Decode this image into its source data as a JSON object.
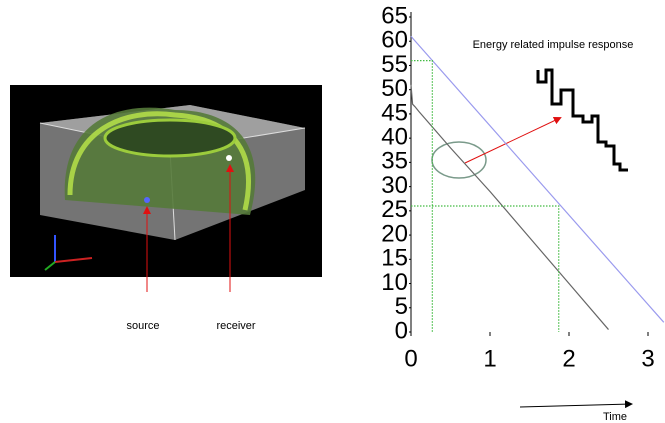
{
  "scene": {
    "labels": [
      "source",
      "receiver"
    ]
  },
  "chart_data": {
    "type": "line",
    "annotations": [
      "Energy related impulse response",
      "Time"
    ],
    "xlim": [
      0,
      3.2
    ],
    "ylim": [
      0,
      65
    ],
    "xticks": [
      0,
      1,
      2,
      3
    ],
    "yticks": [
      0,
      5,
      10,
      15,
      20,
      25,
      30,
      35,
      40,
      45,
      50,
      55,
      60,
      65
    ],
    "series": [
      {
        "color": "#9a9aee",
        "x": [
          0,
          3.2
        ],
        "values": [
          61,
          2
        ]
      },
      {
        "color": "#666666",
        "x": [
          0,
          0.02,
          0.05,
          0.1,
          0.5,
          1,
          1.5,
          2,
          2.5
        ],
        "values": [
          51,
          47,
          46.5,
          45.5,
          38,
          29,
          19.5,
          10,
          0.5
        ]
      },
      {
        "color": "#44bb44",
        "dashed": true,
        "x": [
          0,
          0.27,
          0.27
        ],
        "values": [
          56,
          56,
          0
        ]
      },
      {
        "color": "#44bb44",
        "dashed": true,
        "x": [
          0,
          1.87,
          1.87
        ],
        "values": [
          26,
          26,
          0
        ]
      }
    ]
  }
}
